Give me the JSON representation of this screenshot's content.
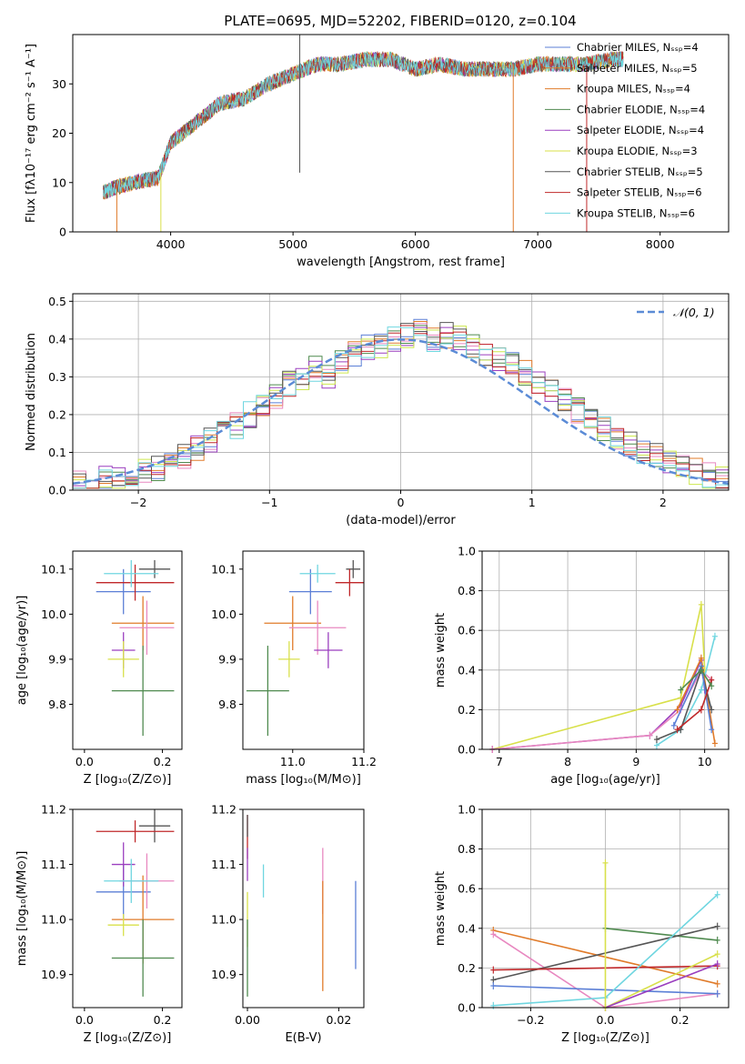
{
  "title": "PLATE=0695, MJD=52202, FIBERID=0120, z=0.104",
  "colors": {
    "chabrier_miles": "#5b7fd6",
    "salpeter_miles": "#e07b2a",
    "kroupa_miles": "#e07b2a",
    "chabrier_elodie": "#4f8a4f",
    "salpeter_elodie": "#9b3fbf",
    "kroupa_elodie": "#d8e04a",
    "chabrier_stelib": "#555555",
    "salpeter_stelib": "#c0282a",
    "kroupa_stelib": "#6fd6e0",
    "pink": "#e888c0",
    "lime": "#cde84f",
    "gauss": "#5b8bd6"
  },
  "chart_data": [
    {
      "id": "spectrum",
      "type": "line",
      "xlabel": "wavelength [Angstrom, rest frame]",
      "ylabel": "Flux [fλ10⁻¹⁷ erg cm⁻² s⁻¹ A⁻¹]",
      "xlim": [
        3200,
        8560
      ],
      "ylim": [
        0,
        40
      ],
      "xticks": [
        "4000",
        "5000",
        "6000",
        "7000",
        "8000"
      ],
      "yticks": [
        "0",
        "10",
        "20",
        "30"
      ],
      "x": [
        3450,
        3550,
        3700,
        3900,
        4000,
        4200,
        4400,
        4600,
        4800,
        5000,
        5200,
        5400,
        5600,
        5800,
        6000,
        6200,
        6400,
        6600,
        6800,
        7000,
        7200,
        7400,
        7600,
        7700
      ],
      "y": [
        8,
        9,
        10,
        11,
        18,
        22,
        26,
        27,
        30,
        32,
        34,
        34,
        35,
        35,
        33,
        34,
        33,
        33,
        33,
        34,
        34,
        34,
        35,
        35
      ],
      "legend": [
        "Chabrier MILES, Nₛₛₚ=4",
        "Salpeter MILES, Nₛₛₚ=5",
        "Kroupa MILES, Nₛₛₚ=4",
        "Chabrier ELODIE, Nₛₛₚ=4",
        "Salpeter ELODIE, Nₛₛₚ=4",
        "Kroupa ELODIE, Nₛₛₚ=3",
        "Chabrier STELIB, Nₛₛₚ=5",
        "Salpeter STELIB, Nₛₛₚ=6",
        "Kroupa STELIB, Nₛₛₚ=6"
      ]
    },
    {
      "id": "residuals",
      "type": "line",
      "xlabel": "(data-model)/error",
      "ylabel": "Normed distribution",
      "xlim": [
        -2.5,
        2.5
      ],
      "ylim": [
        0,
        0.52
      ],
      "xticks": [
        "−2",
        "−1",
        "0",
        "1",
        "2"
      ],
      "yticks": [
        "0.0",
        "0.1",
        "0.2",
        "0.3",
        "0.4",
        "0.5"
      ],
      "legend": [
        "𝒩(0, 1)"
      ],
      "bins_start": -2.5,
      "bin_width": 0.1,
      "hist": [
        0.02,
        0.02,
        0.03,
        0.03,
        0.04,
        0.05,
        0.06,
        0.07,
        0.09,
        0.11,
        0.13,
        0.15,
        0.17,
        0.2,
        0.22,
        0.25,
        0.28,
        0.29,
        0.32,
        0.3,
        0.34,
        0.36,
        0.38,
        0.38,
        0.4,
        0.41,
        0.42,
        0.4,
        0.41,
        0.4,
        0.38,
        0.36,
        0.35,
        0.33,
        0.31,
        0.29,
        0.26,
        0.24,
        0.21,
        0.19,
        0.16,
        0.14,
        0.12,
        0.1,
        0.09,
        0.07,
        0.06,
        0.05,
        0.04,
        0.03
      ]
    },
    {
      "id": "age_vs_z",
      "type": "scatter",
      "xlabel": "Z [log₁₀(Z/Z⊙)]",
      "ylabel": "age  [log₁₀(age/yr)]",
      "xlim": [
        -0.03,
        0.25
      ],
      "ylim": [
        9.7,
        10.14
      ],
      "xticks": [
        "0.0",
        "0.2"
      ],
      "yticks": [
        "9.8",
        "9.9",
        "10.0",
        "10.1"
      ],
      "points": [
        {
          "x": 0.1,
          "y": 10.05,
          "xerr": 0.07,
          "yerr": 0.05,
          "c": "chabrier_miles"
        },
        {
          "x": 0.15,
          "y": 9.98,
          "xerr": 0.08,
          "yerr": 0.06,
          "c": "salpeter_miles"
        },
        {
          "x": 0.16,
          "y": 9.97,
          "xerr": 0.07,
          "yerr": 0.06,
          "c": "pink"
        },
        {
          "x": 0.15,
          "y": 9.83,
          "xerr": 0.08,
          "yerr": 0.1,
          "c": "chabrier_elodie"
        },
        {
          "x": 0.1,
          "y": 9.92,
          "xerr": 0.03,
          "yerr": 0.04,
          "c": "salpeter_elodie"
        },
        {
          "x": 0.1,
          "y": 9.9,
          "xerr": 0.04,
          "yerr": 0.04,
          "c": "kroupa_elodie"
        },
        {
          "x": 0.18,
          "y": 10.1,
          "xerr": 0.04,
          "yerr": 0.02,
          "c": "chabrier_stelib"
        },
        {
          "x": 0.13,
          "y": 10.07,
          "xerr": 0.1,
          "yerr": 0.04,
          "c": "salpeter_stelib"
        },
        {
          "x": 0.12,
          "y": 10.09,
          "xerr": 0.07,
          "yerr": 0.03,
          "c": "kroupa_stelib"
        }
      ]
    },
    {
      "id": "age_vs_mass",
      "type": "scatter",
      "xlabel": "mass [log₁₀(M/M⊙)]",
      "ylabel": "",
      "xlim": [
        10.86,
        11.2
      ],
      "ylim": [
        9.7,
        10.14
      ],
      "xticks": [
        "11.0",
        "11.2"
      ],
      "yticks": [
        "9.8",
        "9.9",
        "10.0",
        "10.1"
      ],
      "points": [
        {
          "x": 11.05,
          "y": 10.05,
          "xerr": 0.06,
          "yerr": 0.05,
          "c": "chabrier_miles"
        },
        {
          "x": 11.0,
          "y": 9.98,
          "xerr": 0.08,
          "yerr": 0.06,
          "c": "salpeter_miles"
        },
        {
          "x": 11.07,
          "y": 9.97,
          "xerr": 0.08,
          "yerr": 0.06,
          "c": "pink"
        },
        {
          "x": 10.93,
          "y": 9.83,
          "xerr": 0.06,
          "yerr": 0.1,
          "c": "chabrier_elodie"
        },
        {
          "x": 11.1,
          "y": 9.92,
          "xerr": 0.04,
          "yerr": 0.04,
          "c": "salpeter_elodie"
        },
        {
          "x": 10.99,
          "y": 9.9,
          "xerr": 0.03,
          "yerr": 0.04,
          "c": "kroupa_elodie"
        },
        {
          "x": 11.17,
          "y": 10.1,
          "xerr": 0.02,
          "yerr": 0.02,
          "c": "chabrier_stelib"
        },
        {
          "x": 11.16,
          "y": 10.07,
          "xerr": 0.04,
          "yerr": 0.03,
          "c": "salpeter_stelib"
        },
        {
          "x": 11.07,
          "y": 10.09,
          "xerr": 0.05,
          "yerr": 0.02,
          "c": "kroupa_stelib"
        }
      ]
    },
    {
      "id": "weights_vs_age",
      "type": "line",
      "xlabel": "age  [log₁₀(age/yr)]",
      "ylabel": "mass weight",
      "xlim": [
        6.75,
        10.35
      ],
      "ylim": [
        0,
        1
      ],
      "xticks": [
        "7",
        "8",
        "9",
        "10"
      ],
      "yticks": [
        "0.0",
        "0.2",
        "0.4",
        "0.6",
        "0.8",
        "1.0"
      ],
      "series": [
        {
          "c": "kroupa_elodie",
          "x": [
            6.9,
            9.65,
            9.95,
            10.0
          ],
          "y": [
            0.0,
            0.26,
            0.73,
            0.4
          ]
        },
        {
          "c": "salpeter_elodie",
          "x": [
            6.9,
            9.2,
            9.65,
            9.95,
            10.0
          ],
          "y": [
            0.0,
            0.07,
            0.22,
            0.45,
            0.3
          ]
        },
        {
          "c": "pink",
          "x": [
            6.9,
            9.2,
            9.65,
            9.95,
            10.1
          ],
          "y": [
            0.0,
            0.07,
            0.2,
            0.4,
            0.35
          ]
        },
        {
          "c": "kroupa_stelib",
          "x": [
            9.3,
            9.65,
            9.95,
            10.15
          ],
          "y": [
            0.02,
            0.1,
            0.3,
            0.57
          ]
        },
        {
          "c": "salpeter_miles",
          "x": [
            9.6,
            9.95,
            10.15
          ],
          "y": [
            0.2,
            0.46,
            0.03
          ]
        },
        {
          "c": "chabrier_stelib",
          "x": [
            9.3,
            9.65,
            9.95,
            10.1
          ],
          "y": [
            0.05,
            0.1,
            0.4,
            0.2
          ]
        },
        {
          "c": "chabrier_miles",
          "x": [
            9.55,
            9.95,
            10.1
          ],
          "y": [
            0.12,
            0.42,
            0.1
          ]
        },
        {
          "c": "salpeter_stelib",
          "x": [
            9.6,
            9.95,
            10.1
          ],
          "y": [
            0.1,
            0.2,
            0.35
          ]
        },
        {
          "c": "chabrier_elodie",
          "x": [
            9.65,
            9.95,
            10.1
          ],
          "y": [
            0.3,
            0.4,
            0.32
          ]
        }
      ]
    },
    {
      "id": "mass_vs_z",
      "type": "scatter",
      "xlabel": "Z [log₁₀(Z/Z⊙)]",
      "ylabel": "mass [log₁₀(M/M⊙)]",
      "xlim": [
        -0.03,
        0.25
      ],
      "ylim": [
        10.84,
        11.2
      ],
      "xticks": [
        "0.0",
        "0.2"
      ],
      "yticks": [
        "10.9",
        "11.0",
        "11.1",
        "11.2"
      ],
      "points": [
        {
          "x": 0.1,
          "y": 11.05,
          "xerr": 0.07,
          "yerr": 0.05,
          "c": "chabrier_miles"
        },
        {
          "x": 0.15,
          "y": 11.0,
          "xerr": 0.08,
          "yerr": 0.08,
          "c": "salpeter_miles"
        },
        {
          "x": 0.16,
          "y": 11.07,
          "xerr": 0.07,
          "yerr": 0.05,
          "c": "pink"
        },
        {
          "x": 0.15,
          "y": 10.93,
          "xerr": 0.08,
          "yerr": 0.07,
          "c": "chabrier_elodie"
        },
        {
          "x": 0.1,
          "y": 11.1,
          "xerr": 0.03,
          "yerr": 0.04,
          "c": "salpeter_elodie"
        },
        {
          "x": 0.1,
          "y": 10.99,
          "xerr": 0.04,
          "yerr": 0.02,
          "c": "kroupa_elodie"
        },
        {
          "x": 0.18,
          "y": 11.17,
          "xerr": 0.04,
          "yerr": 0.03,
          "c": "chabrier_stelib"
        },
        {
          "x": 0.13,
          "y": 11.16,
          "xerr": 0.1,
          "yerr": 0.02,
          "c": "salpeter_stelib"
        },
        {
          "x": 0.12,
          "y": 11.07,
          "xerr": 0.07,
          "yerr": 0.04,
          "c": "kroupa_stelib"
        }
      ]
    },
    {
      "id": "mass_vs_ebv",
      "type": "scatter",
      "xlabel": "E(B-V)",
      "ylabel": "",
      "xlim": [
        -0.001,
        0.0255
      ],
      "ylim": [
        10.84,
        11.2
      ],
      "xticks": [
        "0.00",
        "0.02"
      ],
      "yticks": [
        "10.9",
        "11.0",
        "11.1",
        "11.2"
      ],
      "points": [
        {
          "x": 0.0,
          "y": 11.15,
          "xerr": 0,
          "yerr": 0.04,
          "c": "salpeter_stelib"
        },
        {
          "x": 0.0,
          "y": 11.0,
          "xerr": 0,
          "yerr": 0.05,
          "c": "kroupa_elodie"
        },
        {
          "x": 0.0,
          "y": 10.93,
          "xerr": 0,
          "yerr": 0.07,
          "c": "chabrier_elodie"
        },
        {
          "x": 0.0,
          "y": 11.1,
          "xerr": 0,
          "yerr": 0.03,
          "c": "salpeter_elodie"
        },
        {
          "x": 0.0,
          "y": 11.17,
          "xerr": 0,
          "yerr": 0.02,
          "c": "chabrier_stelib"
        },
        {
          "x": 0.0035,
          "y": 11.07,
          "xerr": 0,
          "yerr": 0.03,
          "c": "kroupa_stelib"
        },
        {
          "x": 0.0165,
          "y": 11.07,
          "xerr": 0,
          "yerr": 0.06,
          "c": "pink"
        },
        {
          "x": 0.0165,
          "y": 10.97,
          "xerr": 0,
          "yerr": 0.1,
          "c": "salpeter_miles"
        },
        {
          "x": 0.0237,
          "y": 10.99,
          "xerr": 0,
          "yerr": 0.08,
          "c": "chabrier_miles"
        }
      ]
    },
    {
      "id": "weights_vs_z",
      "type": "line",
      "xlabel": "Z [log₁₀(Z/Z⊙)]",
      "ylabel": "mass weight",
      "xlim": [
        -0.33,
        0.33
      ],
      "ylim": [
        0,
        1
      ],
      "xticks": [
        "−0.2",
        "0.0",
        "0.2"
      ],
      "yticks": [
        "0.0",
        "0.2",
        "0.4",
        "0.6",
        "0.8",
        "1.0"
      ],
      "series": [
        {
          "c": "salpeter_miles",
          "x": [
            -0.3,
            0.3
          ],
          "y": [
            0.39,
            0.12
          ]
        },
        {
          "c": "pink",
          "x": [
            -0.3,
            0.0,
            0.3
          ],
          "y": [
            0.37,
            0.0,
            0.07
          ]
        },
        {
          "c": "chabrier_elodie",
          "x": [
            0.0,
            0.3
          ],
          "y": [
            0.4,
            0.34
          ]
        },
        {
          "c": "chabrier_stelib",
          "x": [
            -0.3,
            0.3
          ],
          "y": [
            0.14,
            0.41
          ]
        },
        {
          "c": "salpeter_stelib",
          "x": [
            -0.3,
            0.3
          ],
          "y": [
            0.19,
            0.21
          ]
        },
        {
          "c": "chabrier_miles",
          "x": [
            -0.3,
            0.3
          ],
          "y": [
            0.11,
            0.07
          ]
        },
        {
          "c": "kroupa_stelib",
          "x": [
            -0.3,
            0.0,
            0.3
          ],
          "y": [
            0.01,
            0.05,
            0.57
          ]
        },
        {
          "c": "kroupa_elodie",
          "x": [
            0.0,
            0.3
          ],
          "y": [
            0.0,
            0.27
          ]
        },
        {
          "c": "salpeter_elodie",
          "x": [
            0.0,
            0.3
          ],
          "y": [
            0.0,
            0.22
          ]
        },
        {
          "c": "kroupa_elodie",
          "x": [
            0.0,
            0.0
          ],
          "y": [
            0.0,
            0.73
          ]
        }
      ]
    }
  ]
}
